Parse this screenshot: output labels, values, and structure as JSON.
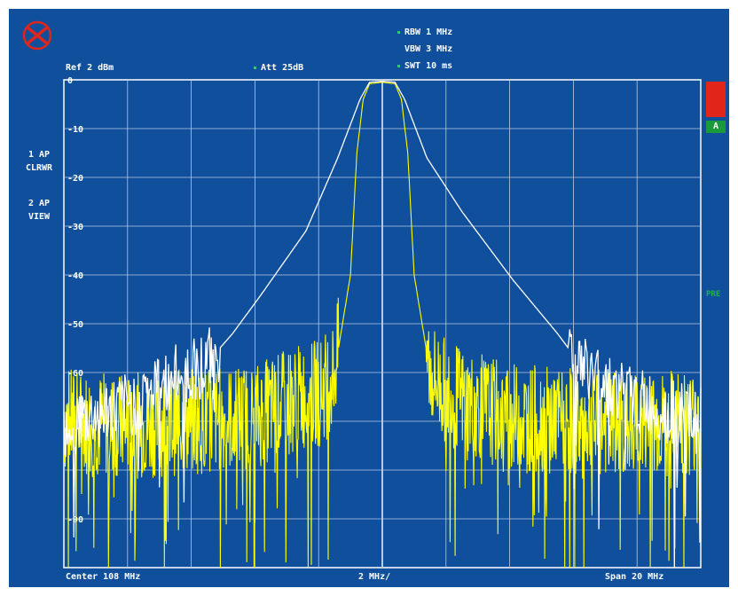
{
  "header": {
    "rbw": "RBW 1 MHz",
    "vbw": "VBW 3 MHz",
    "swt": "SWT 10 ms",
    "ref": "Ref  2 dBm",
    "att": "Att 25dB"
  },
  "traces": {
    "trace1": {
      "line1": "1 AP",
      "line2": "CLRWR"
    },
    "trace2": {
      "line1": "2 AP",
      "line2": "VIEW"
    }
  },
  "side": {
    "marker": "A",
    "pre": "PRE"
  },
  "footer": {
    "center": "Center 108 MHz",
    "div": "2 MHz/",
    "span": "Span 20 MHz"
  },
  "colors": {
    "screen_bg": "#0f4f9c",
    "grid": "#b8c8e4",
    "trace_white": "#ffffff",
    "trace_yellow": "#ffff00",
    "overload": "#e1251b",
    "marker_green": "#1a9a3a"
  },
  "chart_data": {
    "type": "line",
    "x_range": [
      98,
      118
    ],
    "x_unit": "MHz",
    "y_range": [
      -100,
      0
    ],
    "y_unit": "dBm",
    "y_tick_labels": [
      "0",
      "-10",
      "-20",
      "-30",
      "-40",
      "-50",
      "-60",
      "-90"
    ],
    "grid": true,
    "series": [
      {
        "trace": "1",
        "color": "#ffffff",
        "x": [
          98,
          100,
          101.2,
          102.5,
          103.3,
          104.2,
          105.6,
          106.6,
          107.3,
          107.6,
          108,
          108.4,
          108.7,
          109.4,
          110.5,
          112.1,
          113.5,
          114.3,
          116,
          118
        ],
        "y": [
          -71,
          -67,
          -62,
          -58,
          -52,
          -44,
          -31,
          -16,
          -4,
          -0.5,
          -0.3,
          -0.5,
          -4,
          -16,
          -27,
          -41,
          -52,
          -59,
          -66,
          -70
        ]
      },
      {
        "trace": "2",
        "color": "#ffff00",
        "x": [
          98,
          100,
          102,
          104,
          105,
          106,
          106.5,
          107,
          107.2,
          107.4,
          107.6,
          108,
          108.4,
          108.6,
          108.8,
          109,
          109.5,
          110,
          111,
          112,
          114,
          116,
          118
        ],
        "y": [
          -70,
          -71,
          -70,
          -69,
          -66,
          -64,
          -60,
          -40,
          -15,
          -4,
          -0.8,
          -0.5,
          -0.8,
          -4,
          -15,
          -40,
          -60,
          -64,
          -67,
          -69,
          -70,
          -71,
          -70
        ]
      }
    ]
  }
}
